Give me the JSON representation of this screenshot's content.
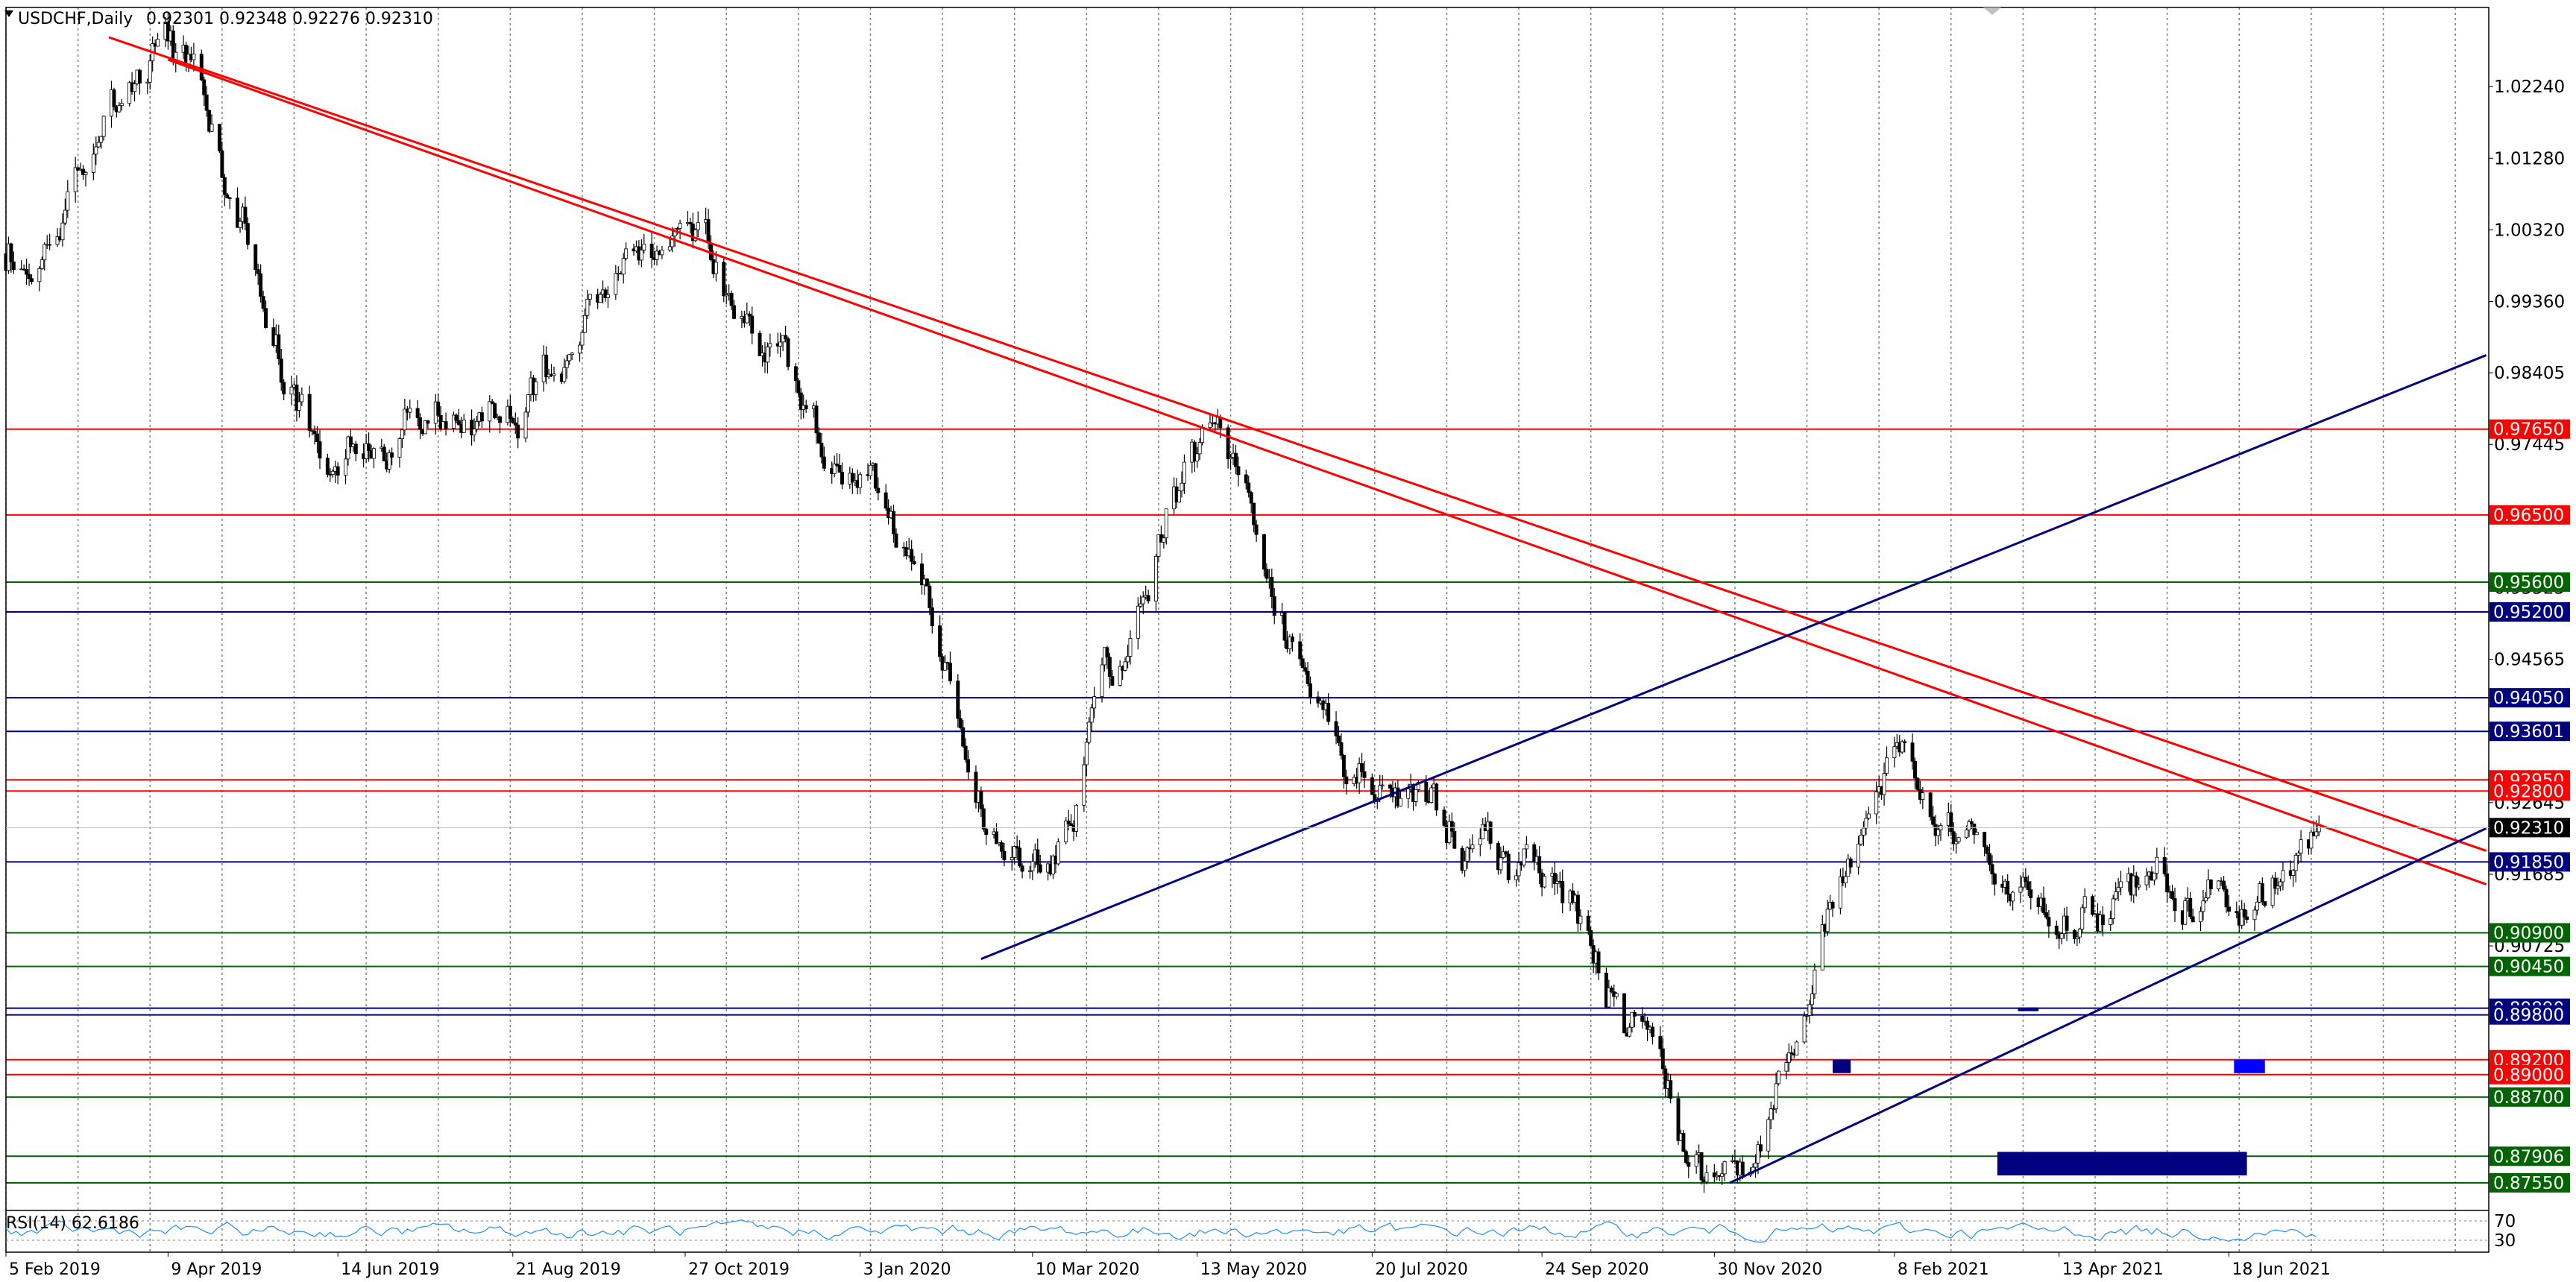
{
  "header": {
    "symbol": "USDCHF,Daily",
    "ohlc": "0.92301 0.92348 0.92276 0.92310"
  },
  "rsi": {
    "label": "RSI(14) 62.6186",
    "scale_labels": [
      "70",
      "30"
    ]
  },
  "colors": {
    "red": "#ff0000",
    "green": "#006400",
    "navy": "#000080",
    "blue": "#0000ff",
    "candle": "#000000",
    "grid": "#808080",
    "current_price_bg": "#000000"
  },
  "chart_data": {
    "type": "candlestick",
    "symbol": "USDCHF",
    "timeframe": "Daily",
    "ylim": [
      0.872,
      1.033
    ],
    "price_ticks": [
      "1.02240",
      "1.01280",
      "1.00320",
      "0.99360",
      "0.98405",
      "0.97445",
      "0.96485",
      "0.95525",
      "0.94565",
      "0.93605",
      "0.92645",
      "0.91685",
      "0.90725"
    ],
    "x_ticks": [
      "5 Feb 2019",
      "9 Apr 2019",
      "14 Jun 2019",
      "21 Aug 2019",
      "27 Oct 2019",
      "3 Jan 2020",
      "10 Mar 2020",
      "13 May 2020",
      "20 Jul 2020",
      "24 Sep 2020",
      "30 Nov 2020",
      "8 Feb 2021",
      "13 Apr 2021",
      "18 Jun 2021"
    ],
    "current_price": "0.92310",
    "price_path": [
      [
        "5 Feb 2019",
        1.0
      ],
      [
        "9 Apr 2019",
        1.025
      ],
      [
        "14 Jun 2019",
        0.974
      ],
      [
        "21 Aug 2019",
        0.98
      ],
      [
        "27 Oct 2019",
        1.002
      ],
      [
        "3 Jan 2020",
        0.97
      ],
      [
        "10 Mar 2020",
        0.918
      ],
      [
        "13 May 2020",
        0.972
      ],
      [
        "20 Jul 2020",
        0.93
      ],
      [
        "24 Sep 2020",
        0.915
      ],
      [
        "30 Nov 2020",
        0.876
      ],
      [
        "8 Feb 2021",
        0.93
      ],
      [
        "13 Apr 2021",
        0.913
      ],
      [
        "18 Jun 2021",
        0.915
      ],
      [
        "23 Jul 2021",
        0.9231
      ]
    ],
    "levels": [
      {
        "price": 0.9765,
        "label": "0.97650",
        "color": "red"
      },
      {
        "price": 0.965,
        "label": "0.96500",
        "color": "red"
      },
      {
        "price": 0.956,
        "label": "0.95600",
        "color": "green"
      },
      {
        "price": 0.952,
        "label": "0.95200",
        "color": "navy"
      },
      {
        "price": 0.9405,
        "label": "0.94050",
        "color": "navy"
      },
      {
        "price": 0.936,
        "label": "0.93601",
        "color": "navy"
      },
      {
        "price": 0.9295,
        "label": "0.92950",
        "color": "red"
      },
      {
        "price": 0.928,
        "label": "0.92800",
        "color": "red"
      },
      {
        "price": 0.9185,
        "label": "0.91850",
        "color": "navy"
      },
      {
        "price": 0.909,
        "label": "0.90900",
        "color": "green"
      },
      {
        "price": 0.9045,
        "label": "0.90450",
        "color": "green"
      },
      {
        "price": 0.8989,
        "label": "0.89890",
        "color": "navy"
      },
      {
        "price": 0.898,
        "label": "0.89800",
        "color": "navy"
      },
      {
        "price": 0.892,
        "label": "0.89200",
        "color": "red"
      },
      {
        "price": 0.89,
        "label": "0.89000",
        "color": "red"
      },
      {
        "price": 0.887,
        "label": "0.88700",
        "color": "green"
      },
      {
        "price": 0.87906,
        "label": "0.87906",
        "color": "green"
      },
      {
        "price": 0.8755,
        "label": "0.87550",
        "color": "green"
      }
    ],
    "trendlines": [
      {
        "color": "red",
        "from": [
          "17 Mar 2019",
          1.029
        ],
        "to": [
          "26 Sep 2021",
          0.92
        ]
      },
      {
        "color": "red",
        "from": [
          "9 Apr 2019",
          1.026
        ],
        "to": [
          "26 Sep 2021",
          0.9155
        ]
      },
      {
        "color": "navy",
        "from": [
          "19 Feb 2020",
          0.9055
        ],
        "to": [
          "26 Sep 2021",
          0.9864
        ]
      },
      {
        "color": "navy",
        "from": [
          "6 Dec 2020",
          0.8755
        ],
        "to": [
          "26 Sep 2021",
          0.923
        ]
      }
    ],
    "zones": [
      {
        "from": [
          "15 Jan 2021",
          0.892
        ],
        "to": [
          "22 Jan 2021",
          0.8902
        ],
        "color": "navy"
      },
      {
        "from": [
          "28 Mar 2021",
          0.899
        ],
        "to": [
          "5 Apr 2021",
          0.8985
        ],
        "color": "navy"
      },
      {
        "from": [
          "20 Jun 2021",
          0.892
        ],
        "to": [
          "2 Jul 2021",
          0.8902
        ],
        "color": "blue"
      },
      {
        "from": [
          "20 Mar 2021",
          0.87965
        ],
        "to": [
          "25 Jun 2021",
          0.8765
        ],
        "color": "navy"
      }
    ]
  }
}
